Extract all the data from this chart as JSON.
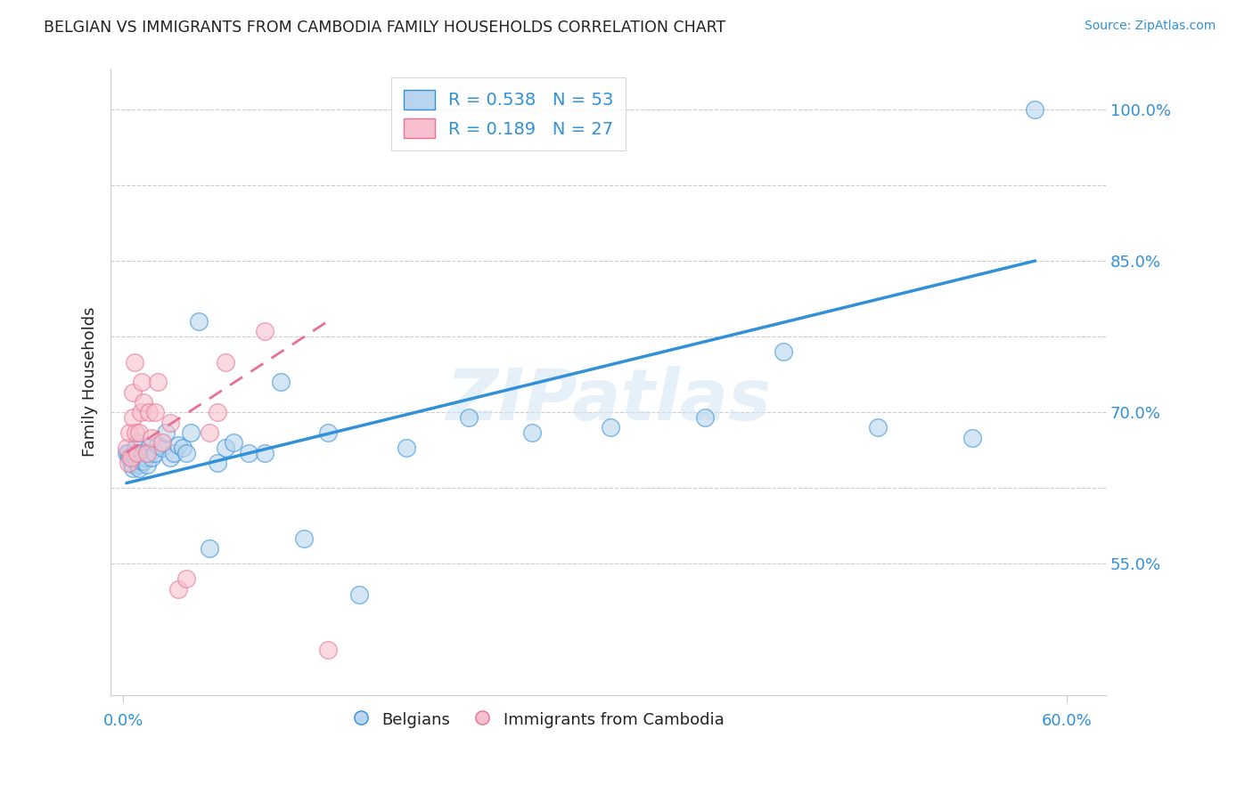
{
  "title": "BELGIAN VS IMMIGRANTS FROM CAMBODIA FAMILY HOUSEHOLDS CORRELATION CHART",
  "source": "Source: ZipAtlas.com",
  "ylabel": "Family Households",
  "watermark": "ZIPatlas",
  "xlim": [
    -0.008,
    0.625
  ],
  "ylim": [
    0.42,
    1.04
  ],
  "yticks": [
    0.55,
    0.7,
    0.85,
    1.0
  ],
  "ytick_labels": [
    "55.0%",
    "70.0%",
    "85.0%",
    "100.0%"
  ],
  "grid_yticks": [
    0.55,
    0.625,
    0.7,
    0.775,
    0.85,
    0.925,
    1.0
  ],
  "belgian_R": "0.538",
  "belgian_N": "53",
  "cambodia_R": "0.189",
  "cambodia_N": "27",
  "belgian_color": "#b8d4ee",
  "cambodia_color": "#f8c0ce",
  "line_belgian_color": "#3090d8",
  "line_cambodia_color": "#e87090",
  "belgian_scatter_x": [
    0.002,
    0.003,
    0.004,
    0.005,
    0.006,
    0.006,
    0.007,
    0.007,
    0.008,
    0.008,
    0.009,
    0.009,
    0.01,
    0.01,
    0.011,
    0.012,
    0.013,
    0.013,
    0.014,
    0.015,
    0.016,
    0.017,
    0.018,
    0.02,
    0.022,
    0.025,
    0.027,
    0.03,
    0.032,
    0.035,
    0.038,
    0.04,
    0.043,
    0.048,
    0.055,
    0.06,
    0.065,
    0.07,
    0.08,
    0.09,
    0.1,
    0.115,
    0.13,
    0.15,
    0.18,
    0.22,
    0.26,
    0.31,
    0.37,
    0.42,
    0.48,
    0.54,
    0.58
  ],
  "belgian_scatter_y": [
    0.66,
    0.66,
    0.655,
    0.65,
    0.648,
    0.645,
    0.66,
    0.658,
    0.665,
    0.655,
    0.67,
    0.65,
    0.648,
    0.645,
    0.652,
    0.658,
    0.652,
    0.66,
    0.655,
    0.648,
    0.665,
    0.66,
    0.655,
    0.66,
    0.668,
    0.665,
    0.68,
    0.655,
    0.66,
    0.668,
    0.665,
    0.66,
    0.68,
    0.79,
    0.565,
    0.65,
    0.665,
    0.67,
    0.66,
    0.66,
    0.73,
    0.575,
    0.68,
    0.52,
    0.665,
    0.695,
    0.68,
    0.685,
    0.695,
    0.76,
    0.685,
    0.675,
    1.0
  ],
  "cambodia_scatter_x": [
    0.002,
    0.003,
    0.004,
    0.005,
    0.006,
    0.006,
    0.007,
    0.008,
    0.009,
    0.01,
    0.011,
    0.012,
    0.013,
    0.015,
    0.016,
    0.018,
    0.02,
    0.022,
    0.025,
    0.03,
    0.035,
    0.04,
    0.055,
    0.06,
    0.065,
    0.09,
    0.13
  ],
  "cambodia_scatter_y": [
    0.665,
    0.65,
    0.68,
    0.655,
    0.72,
    0.695,
    0.75,
    0.68,
    0.66,
    0.68,
    0.7,
    0.73,
    0.71,
    0.66,
    0.7,
    0.675,
    0.7,
    0.73,
    0.67,
    0.69,
    0.525,
    0.535,
    0.68,
    0.7,
    0.75,
    0.78,
    0.465
  ],
  "blue_line_x": [
    0.002,
    0.58
  ],
  "blue_line_y": [
    0.63,
    0.85
  ],
  "pink_line_x": [
    0.002,
    0.13
  ],
  "pink_line_y": [
    0.66,
    0.79
  ],
  "title_color": "#222222",
  "axis_label_color": "#222222",
  "tick_label_color": "#3090d8",
  "grid_color": "#cccccc",
  "background_color": "#ffffff"
}
